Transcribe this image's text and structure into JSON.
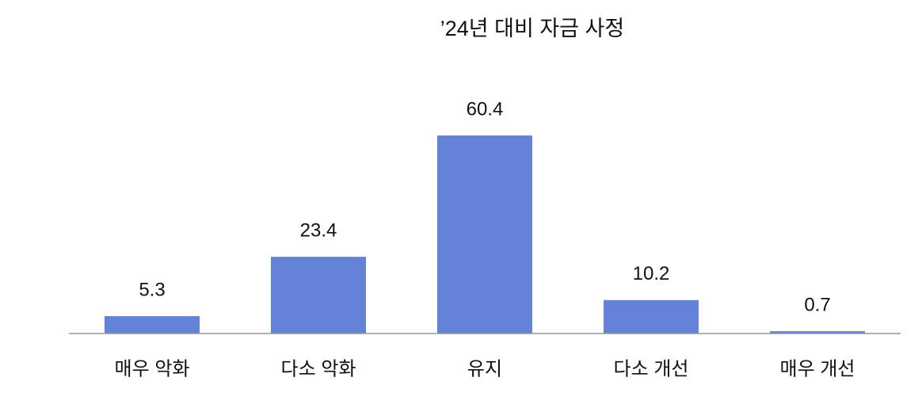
{
  "chart_data": {
    "type": "bar",
    "title": "’24년 대비 자금 사정",
    "categories": [
      "매우 악화",
      "다소 악화",
      "유지",
      "다소 개선",
      "매우 개선"
    ],
    "values": [
      5.3,
      23.4,
      60.4,
      10.2,
      0.7
    ],
    "color": "#6482d6"
  }
}
